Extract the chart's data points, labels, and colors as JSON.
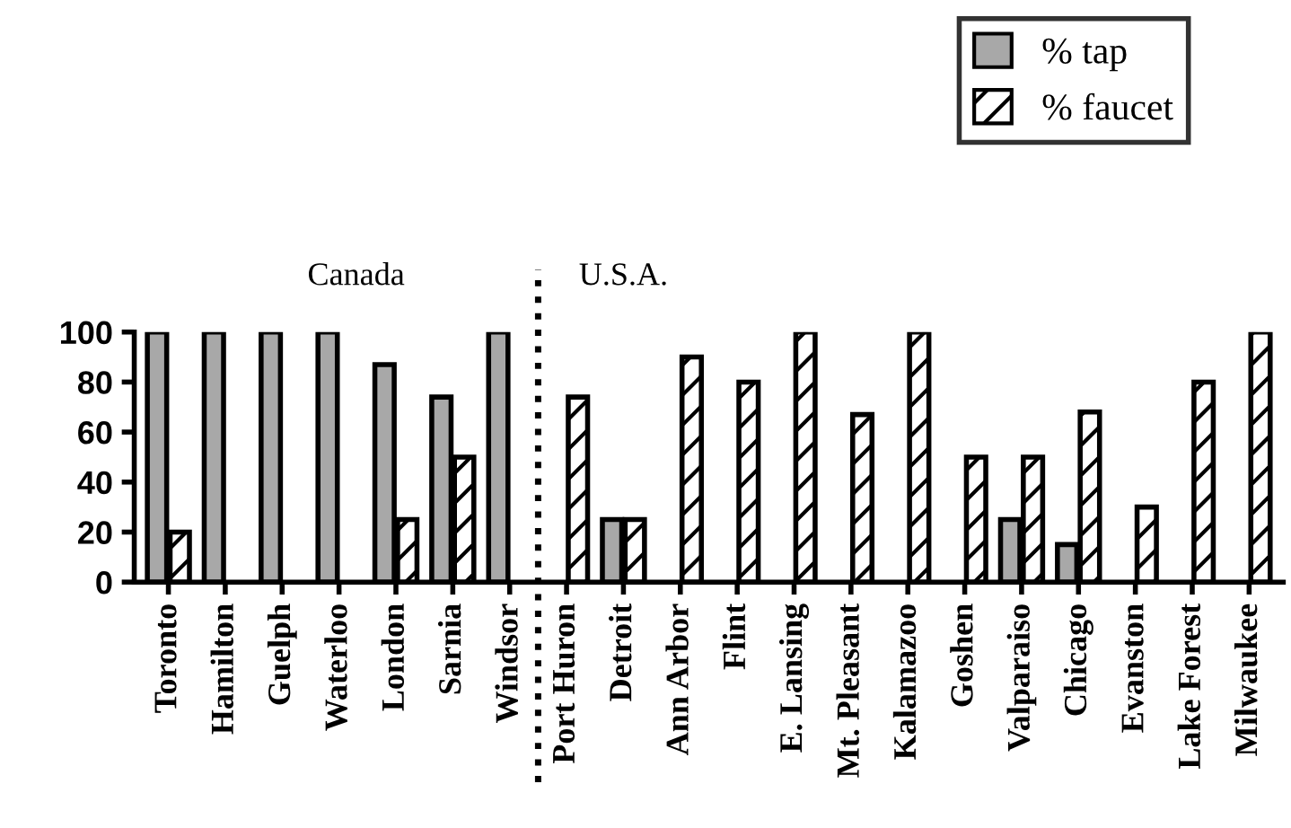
{
  "chart_data": {
    "type": "bar",
    "categories": [
      "Toronto",
      "Hamilton",
      "Guelph",
      "Waterloo",
      "London",
      "Sarnia",
      "Windsor",
      "Port Huron",
      "Detroit",
      "Ann Arbor",
      "Flint",
      "E. Lansing",
      "Mt. Pleasant",
      "Kalamazoo",
      "Goshen",
      "Valparaiso",
      "Chicago",
      "Evanston",
      "Lake Forest",
      "Milwaukee"
    ],
    "series": [
      {
        "name": "% tap",
        "color": "#a8a8a8",
        "values": [
          100,
          100,
          100,
          100,
          87,
          74,
          100,
          null,
          25,
          null,
          null,
          null,
          null,
          null,
          null,
          25,
          15,
          null,
          null,
          null
        ]
      },
      {
        "name": "% faucet",
        "color": "#000000",
        "values": [
          20,
          null,
          null,
          null,
          25,
          50,
          null,
          74,
          25,
          90,
          80,
          100,
          67,
          100,
          50,
          50,
          68,
          30,
          80,
          100
        ]
      }
    ],
    "ylim": [
      0,
      100
    ],
    "yticks": [
      0,
      20,
      40,
      60,
      80,
      100
    ],
    "grid": false,
    "legend": "top right",
    "annotations": [
      "Canada",
      "U.S.A."
    ]
  }
}
